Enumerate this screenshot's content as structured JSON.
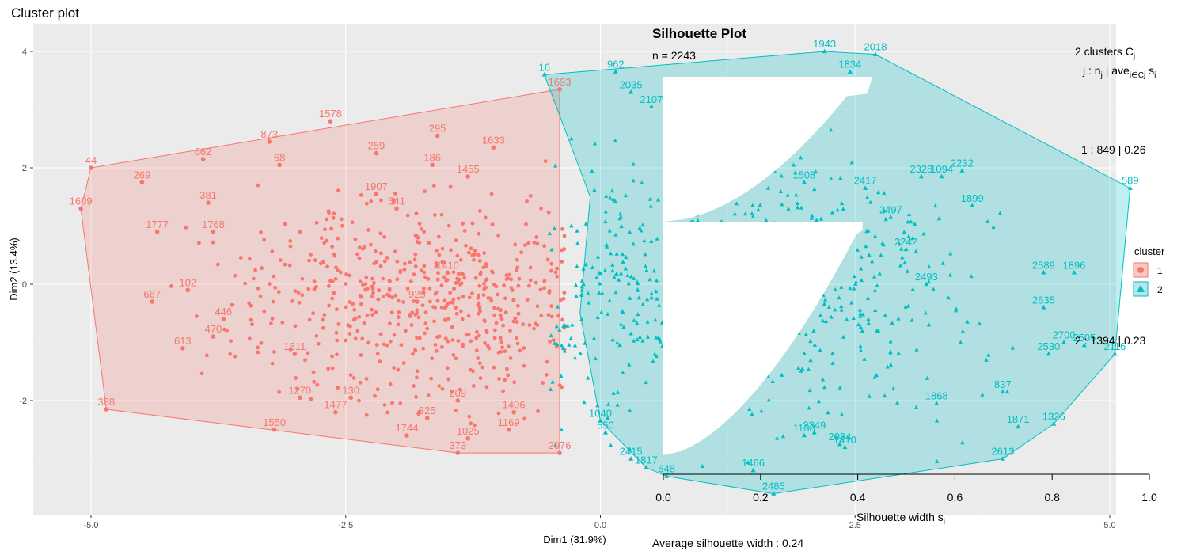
{
  "cluster_plot": {
    "title": "Cluster plot",
    "xlabel": "Dim1 (31.9%)",
    "ylabel": "Dim2 (13.4%)",
    "xticks": [
      "-5.0",
      "-2.5",
      "0.0",
      "2.5",
      "5.0"
    ],
    "yticks": [
      "4",
      "2",
      "0",
      "-2"
    ],
    "legend": {
      "title": "cluster",
      "items": [
        {
          "label": "1"
        },
        {
          "label": "2"
        }
      ]
    },
    "colors": {
      "cluster1": "#F8766D",
      "cluster2": "#00BFC4",
      "panel": "#EBEBEB"
    }
  },
  "silhouette": {
    "title": "Silhouette Plot",
    "n_text": "n = 2243",
    "header_line1": "2  clusters  C",
    "header_line1_sub": "j",
    "header_line2": "j :  n",
    "header_line2_rest": " | ave",
    "header_line2_sub": "i∈Cj",
    "header_line2_end": "  s",
    "header_line2_end_sub": "i",
    "cluster_labels": [
      "1 :   849  |  0.26",
      "2 :   1394  |  0.23"
    ],
    "xlabel": "Silhouette width s",
    "xlabel_sub": "i",
    "xticks": [
      "0.0",
      "0.2",
      "0.4",
      "0.6",
      "0.8",
      "1.0"
    ],
    "avg_text": "Average silhouette width :  0.24"
  },
  "chart_data": [
    {
      "type": "scatter",
      "title": "Cluster plot",
      "xlabel": "Dim1 (31.9%)",
      "ylabel": "Dim2 (13.4%)",
      "xlim": [
        -5.6,
        5.6
      ],
      "ylim": [
        -3.9,
        4.4
      ],
      "grid": true,
      "legend_position": "right",
      "series": [
        {
          "name": "1",
          "points": [
            {
              "x": -5.0,
              "y": 2.0,
              "label": "44"
            },
            {
              "x": -5.1,
              "y": 1.3,
              "label": "1609"
            },
            {
              "x": -4.85,
              "y": -2.15,
              "label": "388"
            },
            {
              "x": -1.4,
              "y": -2.9,
              "label": "373"
            },
            {
              "x": -0.4,
              "y": -2.9,
              "label": "2076"
            },
            {
              "x": -0.4,
              "y": 3.35,
              "label": "1693"
            },
            {
              "x": -2.65,
              "y": 2.8,
              "label": "1578"
            },
            {
              "x": -4.5,
              "y": 1.75,
              "label": "269"
            },
            {
              "x": -4.35,
              "y": 0.9,
              "label": "1777"
            },
            {
              "x": -4.4,
              "y": -0.3,
              "label": "667"
            },
            {
              "x": -4.05,
              "y": -0.1,
              "label": "102"
            },
            {
              "x": -4.1,
              "y": -1.1,
              "label": "613"
            },
            {
              "x": -3.9,
              "y": 2.15,
              "label": "662"
            },
            {
              "x": -2.6,
              "y": -2.2,
              "label": "1477"
            },
            {
              "x": -2.45,
              "y": -1.95,
              "label": "130"
            },
            {
              "x": -3.2,
              "y": -2.5,
              "label": "1550"
            },
            {
              "x": -2.95,
              "y": -1.95,
              "label": "1270"
            },
            {
              "x": -3.25,
              "y": 2.45,
              "label": "873"
            },
            {
              "x": -3.15,
              "y": 2.05,
              "label": "68"
            },
            {
              "x": -2.2,
              "y": 2.25,
              "label": "259"
            },
            {
              "x": -1.6,
              "y": 2.55,
              "label": "295"
            },
            {
              "x": -1.65,
              "y": 2.05,
              "label": "186"
            },
            {
              "x": -1.05,
              "y": 2.35,
              "label": "1633"
            },
            {
              "x": -1.3,
              "y": 1.85,
              "label": "1455"
            },
            {
              "x": -3.85,
              "y": 1.4,
              "label": "381"
            },
            {
              "x": -3.8,
              "y": 0.9,
              "label": "1768"
            },
            {
              "x": -3.7,
              "y": -0.6,
              "label": "446"
            },
            {
              "x": -3.8,
              "y": -0.9,
              "label": "470"
            },
            {
              "x": -1.9,
              "y": -2.6,
              "label": "1744"
            },
            {
              "x": -1.7,
              "y": -2.3,
              "label": "325"
            },
            {
              "x": -1.4,
              "y": -2.0,
              "label": "209"
            },
            {
              "x": -1.3,
              "y": -2.65,
              "label": "1025"
            },
            {
              "x": -0.85,
              "y": -2.2,
              "label": "1406"
            },
            {
              "x": -0.9,
              "y": -2.5,
              "label": "1169"
            },
            {
              "x": -2.2,
              "y": 1.55,
              "label": "1907"
            },
            {
              "x": -2.0,
              "y": 1.3,
              "label": "541"
            },
            {
              "x": -1.5,
              "y": 0.2,
              "label": "1410"
            },
            {
              "x": -1.8,
              "y": -0.3,
              "label": "925"
            },
            {
              "x": -3.0,
              "y": -1.2,
              "label": "1811"
            }
          ]
        },
        {
          "name": "2",
          "points": [
            {
              "x": -0.55,
              "y": 3.6,
              "label": "16"
            },
            {
              "x": 0.15,
              "y": 3.65,
              "label": "962"
            },
            {
              "x": 2.2,
              "y": 4.0,
              "label": "1943"
            },
            {
              "x": 2.7,
              "y": 3.95,
              "label": "2018"
            },
            {
              "x": 2.45,
              "y": 3.65,
              "label": "1834"
            },
            {
              "x": 5.2,
              "y": 1.65,
              "label": "589"
            },
            {
              "x": 5.05,
              "y": -1.2,
              "label": "2116"
            },
            {
              "x": 4.45,
              "y": -2.4,
              "label": "1326"
            },
            {
              "x": 3.95,
              "y": -3.0,
              "label": "2613"
            },
            {
              "x": 1.7,
              "y": -3.6,
              "label": "2485"
            },
            {
              "x": 1.5,
              "y": -3.2,
              "label": "1466"
            },
            {
              "x": 0.65,
              "y": -3.3,
              "label": "648"
            },
            {
              "x": 0.45,
              "y": -3.15,
              "label": "1817"
            },
            {
              "x": 0.3,
              "y": -3.0,
              "label": "2415"
            },
            {
              "x": 0.05,
              "y": -2.55,
              "label": "550"
            },
            {
              "x": 0.0,
              "y": -2.35,
              "label": "1040"
            },
            {
              "x": 3.15,
              "y": 1.85,
              "label": "2328"
            },
            {
              "x": 3.35,
              "y": 1.85,
              "label": "1094"
            },
            {
              "x": 3.55,
              "y": 1.95,
              "label": "2232"
            },
            {
              "x": 3.65,
              "y": 1.35,
              "label": "1899"
            },
            {
              "x": 4.65,
              "y": 0.2,
              "label": "1896"
            },
            {
              "x": 4.35,
              "y": 0.2,
              "label": "2589"
            },
            {
              "x": 4.35,
              "y": -0.4,
              "label": "2635"
            },
            {
              "x": 4.75,
              "y": -1.05,
              "label": "2505"
            },
            {
              "x": 4.55,
              "y": -1.0,
              "label": "2700"
            },
            {
              "x": 4.4,
              "y": -1.2,
              "label": "2530"
            },
            {
              "x": 3.95,
              "y": -1.85,
              "label": "837"
            },
            {
              "x": 3.3,
              "y": -2.05,
              "label": "1868"
            },
            {
              "x": 4.1,
              "y": -2.45,
              "label": "1871"
            },
            {
              "x": 2.0,
              "y": -2.6,
              "label": "1138"
            },
            {
              "x": 2.35,
              "y": -2.75,
              "label": "2084"
            },
            {
              "x": 2.4,
              "y": -2.8,
              "label": "1410"
            },
            {
              "x": 2.1,
              "y": -2.55,
              "label": "2349"
            },
            {
              "x": 3.0,
              "y": 0.6,
              "label": "2242"
            },
            {
              "x": 3.2,
              "y": 0.0,
              "label": "2493"
            },
            {
              "x": 2.0,
              "y": 1.75,
              "label": "1508"
            },
            {
              "x": 2.6,
              "y": 1.65,
              "label": "2417"
            },
            {
              "x": 2.85,
              "y": 1.15,
              "label": "2497"
            },
            {
              "x": 0.5,
              "y": 3.05,
              "label": "2107"
            },
            {
              "x": 0.3,
              "y": 3.3,
              "label": "2035"
            }
          ]
        }
      ],
      "hulls": [
        {
          "series": "1",
          "vertices": [
            [
              -5.1,
              1.3
            ],
            [
              -5.0,
              2.0
            ],
            [
              -0.4,
              3.35
            ],
            [
              -0.4,
              -2.9
            ],
            [
              -1.4,
              -2.9
            ],
            [
              -4.85,
              -2.15
            ]
          ]
        },
        {
          "series": "2",
          "vertices": [
            [
              -0.55,
              3.6
            ],
            [
              2.2,
              4.0
            ],
            [
              2.7,
              3.95
            ],
            [
              5.2,
              1.65
            ],
            [
              5.05,
              -1.2
            ],
            [
              4.45,
              -2.4
            ],
            [
              3.95,
              -3.0
            ],
            [
              1.7,
              -3.6
            ],
            [
              0.65,
              -3.3
            ],
            [
              0.45,
              -3.15
            ],
            [
              0.0,
              -2.35
            ],
            [
              -0.2,
              -0.5
            ],
            [
              -0.1,
              1.5
            ]
          ]
        }
      ]
    },
    {
      "type": "bar",
      "title": "Silhouette Plot",
      "xlabel": "Silhouette width s",
      "xlim": [
        0.0,
        1.0
      ],
      "orientation": "horizontal",
      "series": [
        {
          "name": "1",
          "n": 849,
          "average": 0.26,
          "min": 0.0,
          "max": 0.43
        },
        {
          "name": "2",
          "n": 1394,
          "average": 0.23,
          "min": 0.0,
          "max": 0.41
        }
      ],
      "average_width": 0.24,
      "n": 2243
    }
  ]
}
